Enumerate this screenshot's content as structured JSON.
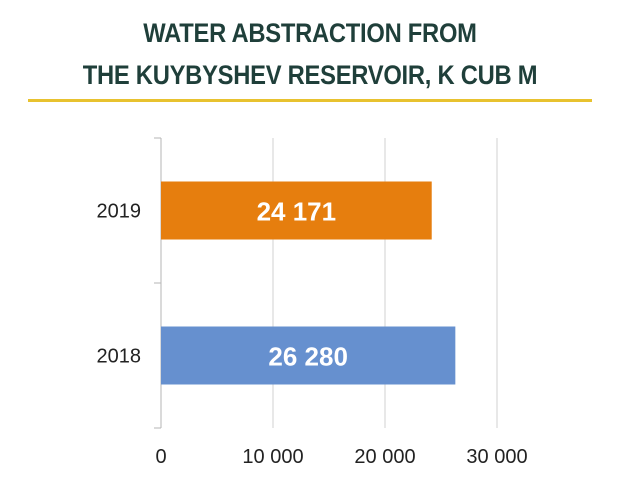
{
  "chart_data": {
    "type": "bar",
    "orientation": "horizontal",
    "title_lines": [
      "WATER ABSTRACTION FROM",
      "THE KUYBYSHEV RESERVOIR, K CUB M"
    ],
    "categories": [
      "2019",
      "2018"
    ],
    "values": [
      24171,
      26280
    ],
    "value_labels": [
      "24 171",
      "26 280"
    ],
    "bar_colors": [
      "#e67e0e",
      "#6690cf"
    ],
    "xlim": [
      0,
      30000
    ],
    "x_ticks": [
      0,
      10000,
      20000,
      30000
    ],
    "x_tick_labels": [
      "0",
      "10 000",
      "20 000",
      "30 000"
    ],
    "grid": "vertical",
    "legend": "none",
    "colors": {
      "title": "#1f3f3a",
      "title_rule": "#e8c22f",
      "grid": "#d0d0d0",
      "axis": "#b5b5b5"
    }
  }
}
